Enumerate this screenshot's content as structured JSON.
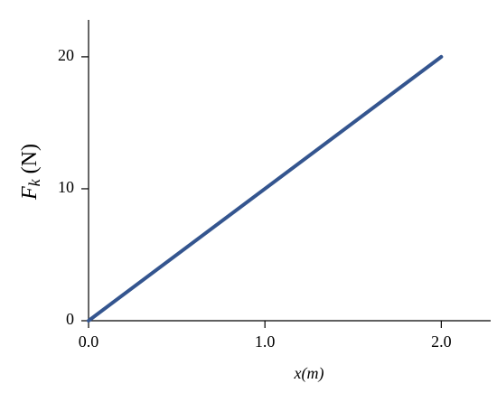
{
  "chart_data": {
    "type": "line",
    "x": [
      0,
      2
    ],
    "series": [
      {
        "color": "#34558f",
        "values": [
          0,
          20
        ]
      }
    ],
    "xlabel": "x(m)",
    "ylabel": {
      "symbol": "F",
      "subscript": "k",
      "unit": "(N)"
    },
    "xlim": [
      0,
      2.28
    ],
    "ylim": [
      0,
      22.8
    ],
    "xticks": [
      {
        "value": 0,
        "label": "0.0"
      },
      {
        "value": 1,
        "label": "1.0"
      },
      {
        "value": 2,
        "label": "2.0"
      }
    ],
    "yticks": [
      0,
      10,
      20
    ],
    "grid": false
  }
}
